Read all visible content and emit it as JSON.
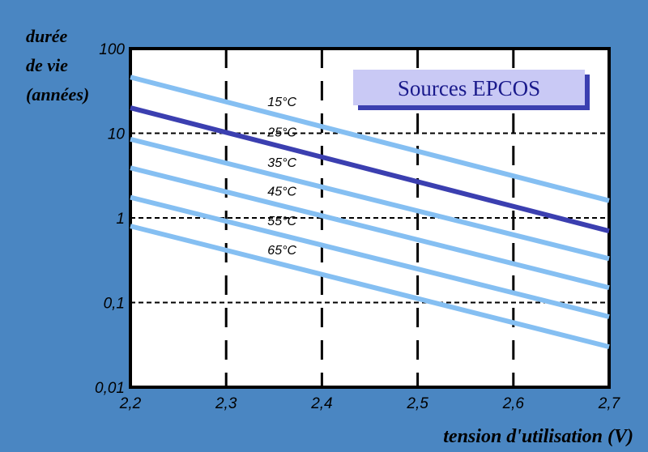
{
  "chart_data": {
    "type": "line",
    "title": "",
    "ylabel_lines": [
      "durée",
      "de vie",
      "(années)"
    ],
    "xlabel": "tension d'utilisation (V)",
    "annotation": "Sources EPCOS",
    "x_scale": "linear",
    "y_scale": "log",
    "xlim": [
      2.2,
      2.7
    ],
    "ylim": [
      0.01,
      100
    ],
    "x_ticks": [
      "2,2",
      "2,3",
      "2,4",
      "2,5",
      "2,6",
      "2,7"
    ],
    "x_tick_values": [
      2.2,
      2.3,
      2.4,
      2.5,
      2.6,
      2.7
    ],
    "y_ticks": [
      "0,01",
      "0,1",
      "1",
      "10",
      "100"
    ],
    "y_tick_values": [
      0.01,
      0.1,
      1,
      10,
      100
    ],
    "grid": "dashed",
    "series": [
      {
        "name": "15°C",
        "x": [
          2.2,
          2.7
        ],
        "y": [
          46,
          1.6
        ],
        "color": "#85bff2"
      },
      {
        "name": "25°C",
        "x": [
          2.2,
          2.7
        ],
        "y": [
          20,
          0.7
        ],
        "color": "#3b3fb0"
      },
      {
        "name": "35°C",
        "x": [
          2.2,
          2.7
        ],
        "y": [
          8.5,
          0.33
        ],
        "color": "#85bff2"
      },
      {
        "name": "45°C",
        "x": [
          2.2,
          2.7
        ],
        "y": [
          3.9,
          0.15
        ],
        "color": "#85bff2"
      },
      {
        "name": "55°C",
        "x": [
          2.2,
          2.7
        ],
        "y": [
          1.75,
          0.068
        ],
        "color": "#85bff2"
      },
      {
        "name": "65°C",
        "x": [
          2.2,
          2.7
        ],
        "y": [
          0.8,
          0.03
        ],
        "color": "#85bff2"
      }
    ]
  }
}
